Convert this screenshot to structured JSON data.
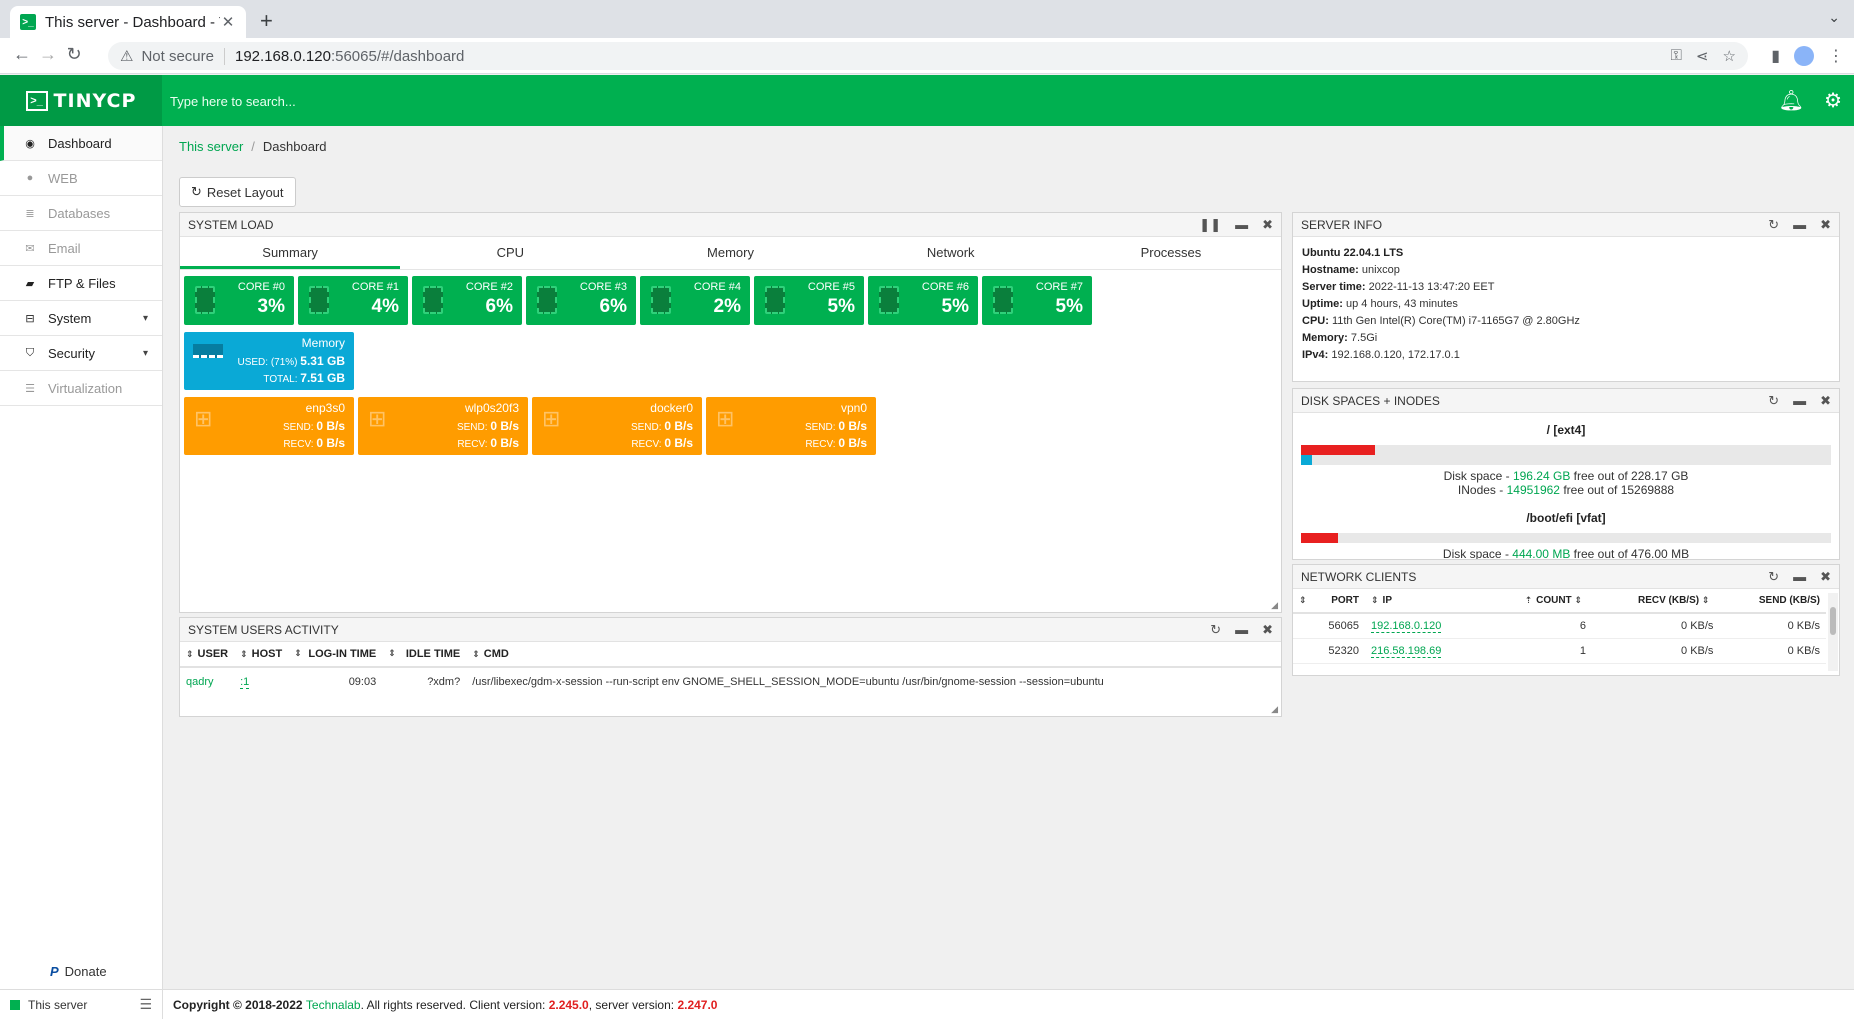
{
  "browser": {
    "tab_title": "This server - Dashboard - T",
    "tab_close": "✕",
    "new_tab": "+",
    "not_secure": "Not secure",
    "url_host": "192.168.0.120",
    "url_path": ":56065/#/dashboard"
  },
  "header": {
    "logo_mark": ">_",
    "logo_text": "TINYCP",
    "search_placeholder": "Type here to search..."
  },
  "sidebar": {
    "items": [
      {
        "label": "Dashboard"
      },
      {
        "label": "WEB"
      },
      {
        "label": "Databases"
      },
      {
        "label": "Email"
      },
      {
        "label": "FTP & Files"
      },
      {
        "label": "System"
      },
      {
        "label": "Security"
      },
      {
        "label": "Virtualization"
      }
    ],
    "donate": "Donate"
  },
  "breadcrumb": {
    "link": "This server",
    "sep": "/",
    "current": "Dashboard"
  },
  "reset_layout": "Reset Layout",
  "system_load": {
    "title": "SYSTEM LOAD",
    "tabs": [
      "Summary",
      "CPU",
      "Memory",
      "Network",
      "Processes"
    ],
    "cores": [
      {
        "name": "CORE #0",
        "value": "3%"
      },
      {
        "name": "CORE #1",
        "value": "4%"
      },
      {
        "name": "CORE #2",
        "value": "6%"
      },
      {
        "name": "CORE #3",
        "value": "6%"
      },
      {
        "name": "CORE #4",
        "value": "2%"
      },
      {
        "name": "CORE #5",
        "value": "5%"
      },
      {
        "name": "CORE #6",
        "value": "5%"
      },
      {
        "name": "CORE #7",
        "value": "5%"
      }
    ],
    "memory": {
      "title": "Memory",
      "used_label": "USED: (71%)",
      "used": "5.31 GB",
      "total_label": "TOTAL:",
      "total": "7.51 GB"
    },
    "networks": [
      {
        "name": "enp3s0",
        "send": "0 B/s",
        "recv": "0 B/s"
      },
      {
        "name": "wlp0s20f3",
        "send": "0 B/s",
        "recv": "0 B/s"
      },
      {
        "name": "docker0",
        "send": "0 B/s",
        "recv": "0 B/s"
      },
      {
        "name": "vpn0",
        "send": "0 B/s",
        "recv": "0 B/s"
      }
    ],
    "send_label": "SEND:",
    "recv_label": "RECV:"
  },
  "users_activity": {
    "title": "SYSTEM USERS ACTIVITY",
    "columns": [
      "USER",
      "HOST",
      "LOG-IN TIME",
      "IDLE TIME",
      "CMD"
    ],
    "rows": [
      {
        "user": "qadry",
        "host": ":1",
        "login": "09:03",
        "idle": "?xdm?",
        "cmd": "/usr/libexec/gdm-x-session --run-script env GNOME_SHELL_SESSION_MODE=ubuntu /usr/bin/gnome-session --session=ubuntu"
      }
    ]
  },
  "server_info": {
    "title": "SERVER INFO",
    "os": "Ubuntu 22.04.1 LTS",
    "lines": [
      {
        "label": "Hostname:",
        "value": "unixcop"
      },
      {
        "label": "Server time:",
        "value": "2022-11-13 13:47:20 EET"
      },
      {
        "label": "Uptime:",
        "value": "up 4 hours, 43 minutes"
      },
      {
        "label": "CPU:",
        "value": "11th Gen Intel(R) Core(TM) i7-1165G7 @ 2.80GHz"
      },
      {
        "label": "Memory:",
        "value": "7.5Gi"
      },
      {
        "label": "IPv4:",
        "value": "192.168.0.120, 172.17.0.1"
      }
    ]
  },
  "disks": {
    "title": "DISK SPACES + INODES",
    "items": [
      {
        "mount": "/ [ext4]",
        "space_used_fraction": 0.14,
        "inodes_used_fraction": 0.02,
        "space_prefix": "Disk space - ",
        "space_free": "196.24 GB",
        "space_suffix": " free out of 228.17 GB",
        "inodes_prefix": "INodes - ",
        "inodes_free": "14951962",
        "inodes_suffix": " free out of 15269888"
      },
      {
        "mount": "/boot/efi [vfat]",
        "space_used_fraction": 0.07,
        "space_prefix": "Disk space - ",
        "space_free": "444.00 MB",
        "space_suffix": " free out of 476.00 MB"
      }
    ]
  },
  "network_clients": {
    "title": "NETWORK CLIENTS",
    "columns": [
      "PORT",
      "IP",
      "COUNT",
      "RECV (KB/S)",
      "SEND (KB/S)"
    ],
    "rows": [
      {
        "port": "56065",
        "ip": "192.168.0.120",
        "count": "6",
        "recv": "0 KB/s",
        "send": "0 KB/s"
      },
      {
        "port": "52320",
        "ip": "216.58.198.69",
        "count": "1",
        "recv": "0 KB/s",
        "send": "0 KB/s"
      }
    ]
  },
  "footer": {
    "server": "This server",
    "copyright": "Copyright © 2018-2022 ",
    "company": "Technalab",
    "rights": ". All rights reserved. Client version: ",
    "client_version": "2.245.0",
    "server_label": ", server version: ",
    "server_version": "2.247.0"
  },
  "colors": {
    "brand": "#00b050",
    "core_tile": "#00b050",
    "memory_tile": "#0aa9d6",
    "network_tile": "#ff9c00",
    "disk_bar": "#e82020",
    "inode_bar": "#0aa9d6"
  }
}
